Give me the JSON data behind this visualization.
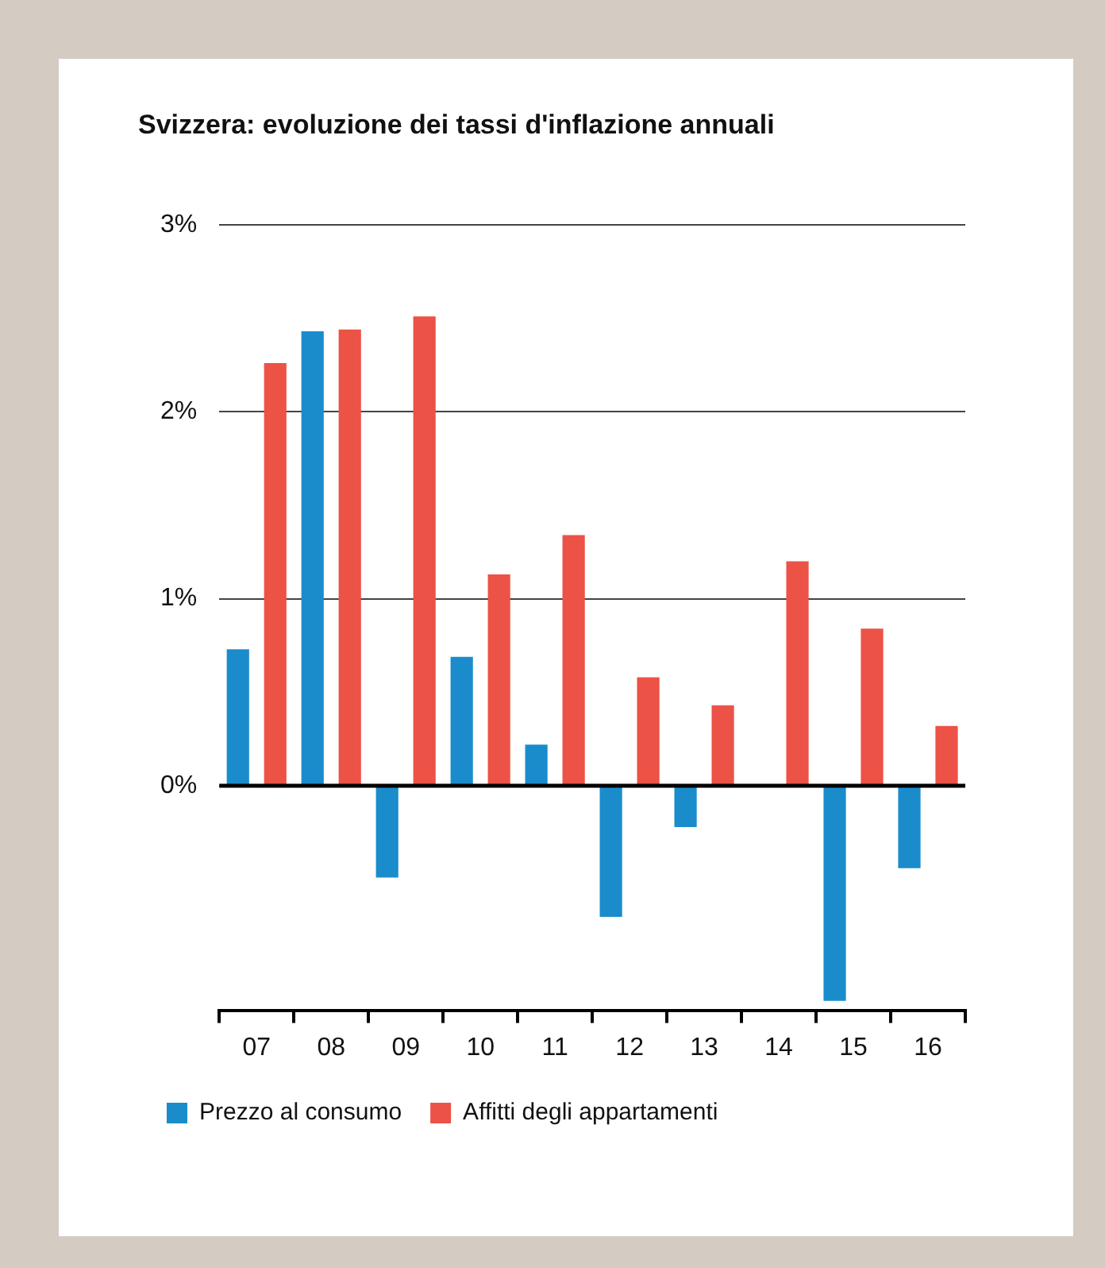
{
  "chart_data": {
    "type": "bar",
    "title": "Svizzera: evoluzione dei tassi d'inflazione annuali",
    "categories": [
      "07",
      "08",
      "09",
      "10",
      "11",
      "12",
      "13",
      "14",
      "15",
      "16"
    ],
    "series": [
      {
        "name": "Prezzo al consumo",
        "color": "#1a8ccc",
        "values": [
          0.73,
          2.43,
          -0.49,
          0.69,
          0.22,
          -0.7,
          -0.22,
          0,
          -1.15,
          -0.44
        ]
      },
      {
        "name": "Affitti degli appartamenti",
        "color": "#ec5246",
        "values": [
          2.26,
          2.44,
          2.51,
          1.13,
          1.34,
          0.58,
          0.43,
          1.2,
          0.84,
          0.32
        ]
      }
    ],
    "ylim": [
      -1.2,
      3
    ],
    "yticks": [
      {
        "value": 0,
        "label": "0%"
      },
      {
        "value": 1,
        "label": "1%"
      },
      {
        "value": 2,
        "label": "2%"
      },
      {
        "value": 3,
        "label": "3%"
      }
    ],
    "ref_lines": [
      {
        "axis": "y",
        "value": 0,
        "color": "#000000"
      }
    ],
    "grid": "y",
    "legend": "bottom left"
  }
}
